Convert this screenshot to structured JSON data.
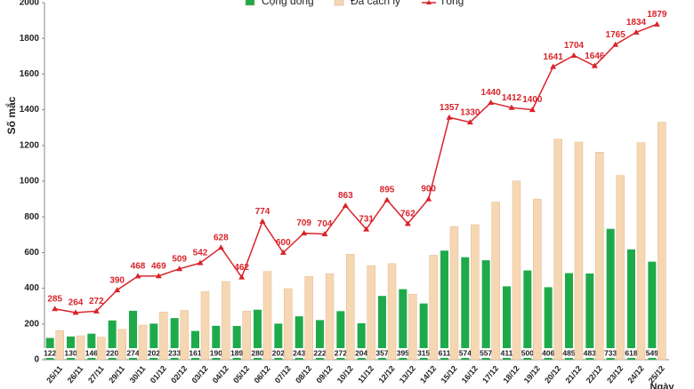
{
  "chart_data": {
    "type": "bar",
    "y_label": "Số mắc",
    "x_label": "Ngày",
    "categories": [
      "25/11",
      "26/11",
      "27/11",
      "29/11",
      "30/11",
      "01/12",
      "02/12",
      "03/12",
      "04/12",
      "05/12",
      "06/12",
      "07/12",
      "08/12",
      "09/12",
      "10/12",
      "11/12",
      "12/12",
      "13/12",
      "14/12",
      "15/12",
      "16/12",
      "17/12",
      "18/12",
      "19/12",
      "20/12",
      "21/12",
      "22/12",
      "23/12",
      "24/12",
      "25/12"
    ],
    "series": [
      {
        "name": "Cộng đồng",
        "type": "bar",
        "color": "#1faa4a",
        "values": [
          122,
          130,
          146,
          220,
          274,
          202,
          233,
          161,
          190,
          189,
          280,
          202,
          243,
          222,
          272,
          204,
          357,
          395,
          315,
          611,
          574,
          557,
          411,
          500,
          406,
          485,
          483,
          733,
          618,
          549
        ]
      },
      {
        "name": "Đã cách ly",
        "type": "bar",
        "color": "#f6d7b4",
        "values": [
          163,
          134,
          126,
          170,
          194,
          267,
          276,
          381,
          438,
          273,
          494,
          398,
          466,
          482,
          591,
          527,
          538,
          367,
          585,
          746,
          756,
          883,
          1001,
          900,
          1235,
          1219,
          1163,
          1032,
          1216,
          1330
        ]
      },
      {
        "name": "Tổng",
        "type": "line",
        "color": "#d9232a",
        "values": [
          285,
          264,
          272,
          390,
          468,
          469,
          509,
          542,
          628,
          462,
          774,
          600,
          709,
          704,
          863,
          731,
          895,
          762,
          900,
          1357,
          1330,
          1440,
          1412,
          1400,
          1641,
          1704,
          1646,
          1765,
          1834,
          1879
        ]
      }
    ],
    "ylim": [
      0,
      2000
    ],
    "yticks": [
      0,
      200,
      400,
      600,
      800,
      1000,
      1200,
      1400,
      1600,
      1800,
      2000
    ],
    "grid": false
  }
}
